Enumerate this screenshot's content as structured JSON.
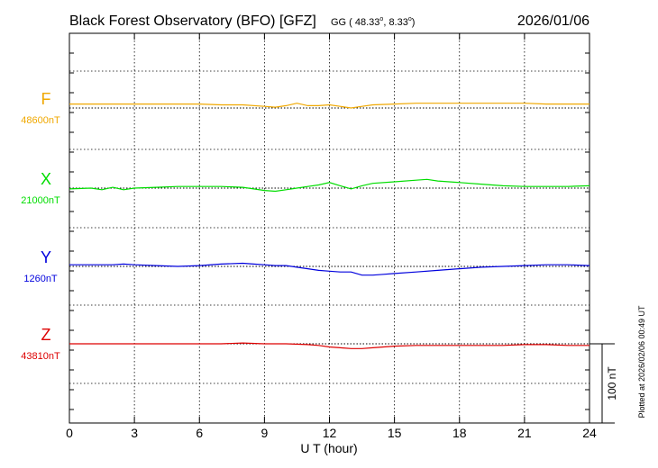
{
  "header": {
    "title": "Black Forest Observatory (BFO)  [GFZ]",
    "coords_prefix": "GG ( 48.33",
    "coords_mid": ",   8.33",
    "coords_suffix": ")",
    "date": "2026/01/06",
    "degree": "o"
  },
  "side_note": "Plotted at 2026/02/06 00:49 UT",
  "scale_bar": {
    "label": "100 nT",
    "value_nT": 100
  },
  "colors": {
    "F": "#f0a800",
    "X": "#00dd00",
    "Y": "#0000dd",
    "Z": "#dd0000",
    "axis": "#000000"
  },
  "chart_data": {
    "type": "line",
    "xlabel": "U T (hour)",
    "xlim": [
      0,
      24
    ],
    "x_ticks": [
      "0",
      "3",
      "6",
      "9",
      "12",
      "15",
      "18",
      "21",
      "24"
    ],
    "grid": true,
    "series": [
      {
        "name": "F",
        "baseline_label": "48600nT",
        "baseline_nT": 48600,
        "x": [
          0,
          1,
          2,
          3,
          4,
          5,
          6,
          7,
          8,
          9,
          9.5,
          10,
          10.5,
          11,
          11.5,
          12,
          12.5,
          13,
          13.5,
          14,
          15,
          16,
          17,
          18,
          19,
          20,
          21,
          22,
          23,
          24
        ],
        "values": [
          48605,
          48605,
          48605,
          48605,
          48605,
          48605,
          48605,
          48604,
          48604,
          48602,
          48601,
          48603,
          48606,
          48603,
          48603,
          48604,
          48602,
          48600,
          48602,
          48604,
          48605,
          48606,
          48606,
          48606,
          48606,
          48606,
          48606,
          48605,
          48605,
          48605
        ]
      },
      {
        "name": "X",
        "baseline_label": "21000nT",
        "baseline_nT": 21000,
        "x": [
          0,
          1,
          1.5,
          2,
          2.5,
          3,
          4,
          5,
          6,
          7,
          8,
          8.5,
          9,
          9.5,
          10,
          10.5,
          11,
          11.5,
          12,
          12.5,
          13,
          13.5,
          14,
          15,
          16,
          16.5,
          17,
          18,
          19,
          20,
          21,
          22,
          23,
          24
        ],
        "values": [
          20999,
          21000,
          20998,
          21001,
          20998,
          21000,
          21001,
          21002,
          21002,
          21002,
          21001,
          20999,
          20997,
          20996,
          20998,
          21000,
          21002,
          21004,
          21007,
          21003,
          20999,
          21003,
          21006,
          21008,
          21010,
          21011,
          21009,
          21007,
          21005,
          21003,
          21002,
          21002,
          21002,
          21003
        ]
      },
      {
        "name": "Y",
        "baseline_label": "1260nT",
        "baseline_nT": 1260,
        "x": [
          0,
          1,
          2,
          2.5,
          3,
          4,
          5,
          6,
          7,
          8,
          8.5,
          9,
          9.5,
          10,
          10.5,
          11,
          11.5,
          12,
          12.5,
          13,
          13.5,
          14,
          14.5,
          15,
          16,
          17,
          18,
          19,
          20,
          21,
          22,
          23,
          24
        ],
        "values": [
          1262,
          1262,
          1262,
          1263,
          1262,
          1261,
          1260,
          1261,
          1263,
          1264,
          1263,
          1262,
          1261,
          1261,
          1259,
          1257,
          1255,
          1254,
          1253,
          1253,
          1249,
          1249,
          1250,
          1251,
          1253,
          1255,
          1257,
          1259,
          1260,
          1261,
          1262,
          1262,
          1261
        ]
      },
      {
        "name": "Z",
        "baseline_label": "43810nT",
        "baseline_nT": 43810,
        "x": [
          0,
          1,
          2,
          3,
          4,
          5,
          6,
          7,
          8,
          9,
          10,
          11,
          11.5,
          12,
          12.5,
          13,
          13.5,
          14,
          14.5,
          15,
          16,
          17,
          18,
          19,
          20,
          21,
          22,
          23,
          24
        ],
        "values": [
          43810,
          43810,
          43810,
          43810,
          43810,
          43810,
          43810,
          43810,
          43811,
          43810,
          43810,
          43809,
          43808,
          43806,
          43805,
          43804,
          43804,
          43805,
          43806,
          43807,
          43808,
          43808,
          43808,
          43808,
          43808,
          43809,
          43809,
          43808,
          43808
        ]
      }
    ]
  }
}
